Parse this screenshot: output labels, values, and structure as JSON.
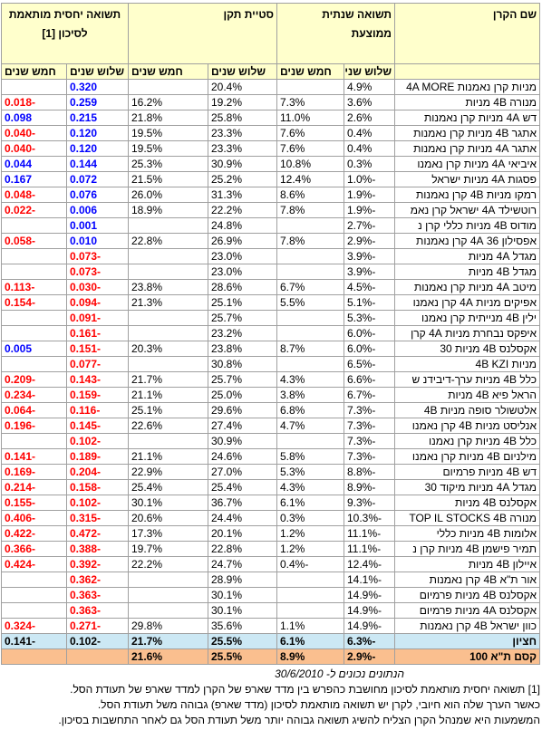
{
  "header": {
    "name": "שם הקרן",
    "groups": [
      {
        "label": "תשואה שנתית ממוצעת",
        "sub": [
          "שלוש שנים",
          "חמש שנים"
        ]
      },
      {
        "label": "סטיית תקן",
        "sub": [
          "שלוש שנים",
          "חמש שנים"
        ]
      },
      {
        "label": "תשואה יחסית מותאמת לסיכון [1]",
        "sub": [
          "שלוש שנים",
          "חמש שנים"
        ]
      }
    ]
  },
  "rows": [
    [
      "מניות קרן נאמנות 4A MORE",
      "4.9%",
      null,
      "20.4%",
      null,
      "0.320",
      null
    ],
    [
      "מנורה 4B מניות",
      "3.6%",
      "7.3%",
      "19.2%",
      "16.2%",
      "0.259",
      "-0.018"
    ],
    [
      "דש 4A מניות קרן נאמנות",
      "2.6%",
      "11.0%",
      "25.8%",
      "21.8%",
      "0.215",
      "0.098"
    ],
    [
      "אתגר 4B מניות קרן נאמנות",
      "0.4%",
      "7.6%",
      "23.3%",
      "19.5%",
      "0.120",
      "-0.040"
    ],
    [
      "אתגר 4A מניות קרן נאמנות",
      "0.4%",
      "7.6%",
      "23.3%",
      "19.5%",
      "0.120",
      "-0.040"
    ],
    [
      "איביאי 4A מניות קרן נאמנו",
      "0.3%",
      "10.8%",
      "30.9%",
      "25.3%",
      "0.144",
      "0.044"
    ],
    [
      "פסגות 4A מניות ישראל",
      "-1.0%",
      "12.4%",
      "25.2%",
      "21.5%",
      "0.072",
      "0.167"
    ],
    [
      "רמקו מניות 4B קרן נאמנות",
      "-1.9%",
      "8.6%",
      "31.3%",
      "26.0%",
      "0.076",
      "-0.048"
    ],
    [
      "רוטשילד 4A ישראל קרן נאמ",
      "-1.9%",
      "7.8%",
      "22.2%",
      "18.9%",
      "0.006",
      "-0.022"
    ],
    [
      "מודוס 4B מניות כללי קרן נ",
      "-2.7%",
      null,
      "24.8%",
      null,
      "0.001",
      null
    ],
    [
      "אפסילון 36 4A קרן נאמנות",
      "-2.9%",
      "7.8%",
      "26.9%",
      "22.8%",
      "0.010",
      "-0.058"
    ],
    [
      "מגדל 4A מניות",
      "-3.9%",
      null,
      "23.0%",
      null,
      "-0.073",
      null
    ],
    [
      "מגדל 4B מניות",
      "-3.9%",
      null,
      "23.0%",
      null,
      "-0.073",
      null
    ],
    [
      "מיטב 4A מניות קרן נאמנות",
      "-4.5%",
      "6.7%",
      "28.6%",
      "23.8%",
      "-0.030",
      "-0.113"
    ],
    [
      "אפיקים מניות 4A קרן נאמנו",
      "-5.1%",
      "5.5%",
      "25.1%",
      "21.3%",
      "-0.094",
      "-0.154"
    ],
    [
      "ילין 4B מנייתית קרן נאמנו",
      "-5.3%",
      null,
      "25.7%",
      null,
      "-0.091",
      null
    ],
    [
      "איפקס נבחרת מניות 4A קרן",
      "-6.0%",
      null,
      "23.2%",
      null,
      "-0.161",
      null
    ],
    [
      "אקסלנס 4B מניות 30",
      "-6.0%",
      "8.7%",
      "23.8%",
      "20.3%",
      "-0.151",
      "0.005"
    ],
    [
      "מניות 4B KZI",
      "-6.5%",
      null,
      "30.8%",
      null,
      "-0.077",
      null
    ],
    [
      "כלל 4B מניות ערך-דיבידנ ש",
      "-6.6%",
      "4.3%",
      "25.7%",
      "21.7%",
      "-0.143",
      "-0.209"
    ],
    [
      "הראל פיא 4B מניות",
      "-6.7%",
      "3.8%",
      "25.0%",
      "21.1%",
      "-0.159",
      "-0.234"
    ],
    [
      "אלטשולר סופה מניות 4B",
      "-7.3%",
      "6.8%",
      "29.6%",
      "25.1%",
      "-0.116",
      "-0.064"
    ],
    [
      "אנליסט מניות 4B קרן נאמנו",
      "-7.3%",
      "4.7%",
      "27.4%",
      "22.6%",
      "-0.145",
      "-0.196"
    ],
    [
      "כלל 4B מניות קרן נאמנו",
      "-7.3%",
      null,
      "30.9%",
      null,
      "-0.102",
      null
    ],
    [
      "מילניום 4B מניות קרן נאמנו",
      "-7.3%",
      "5.8%",
      "24.6%",
      "21.1%",
      "-0.189",
      "-0.141"
    ],
    [
      "דש 4B מניות פרמיום",
      "-8.8%",
      "5.3%",
      "27.0%",
      "22.9%",
      "-0.204",
      "-0.169"
    ],
    [
      "מגדל 4A מניות מיקוד 30",
      "-8.9%",
      "4.3%",
      "25.4%",
      "25.4%",
      "-0.158",
      "-0.214"
    ],
    [
      "אקסלנס 4B מניות",
      "-9.3%",
      "6.1%",
      "36.7%",
      "30.1%",
      "-0.102",
      "-0.155"
    ],
    [
      "מנורה TOP IL STOCKS 4B",
      "-10.3%",
      "0.3%",
      "24.4%",
      "20.6%",
      "-0.315",
      "-0.406"
    ],
    [
      "אלומות 4B מניות כללי",
      "-11.1%",
      "1.2%",
      "20.1%",
      "17.3%",
      "-0.472",
      "-0.422"
    ],
    [
      "תמיר פישמן 4B מניות קרן נ",
      "-11.1%",
      "1.2%",
      "22.8%",
      "19.7%",
      "-0.388",
      "-0.366"
    ],
    [
      "איילון 4B מניות",
      "-12.4%",
      "-0.4%",
      "24.7%",
      "22.2%",
      "-0.392",
      "-0.424"
    ],
    [
      "אור ת\"א 4B קרן נאמנות",
      "-14.1%",
      null,
      "28.9%",
      null,
      "-0.362",
      null
    ],
    [
      "אקסלנס 4B מניות פרמיום",
      "-14.9%",
      null,
      "30.1%",
      null,
      "-0.363",
      null
    ],
    [
      "אקסלנס 4A מניות פרמיום",
      "-14.9%",
      null,
      "30.1%",
      null,
      "-0.363",
      null
    ],
    [
      "כוון ישראל 4B קרן נאמנות",
      "-14.9%",
      "1.1%",
      "35.6%",
      "29.8%",
      "-0.271",
      "-0.324"
    ]
  ],
  "median": [
    "חציון",
    "-6.3%",
    "6.1%",
    "25.5%",
    "21.7%",
    "-0.102",
    "-0.141"
  ],
  "benchmark": [
    "קסם ת\"א 100",
    "-2.9%",
    "8.9%",
    "25.5%",
    "21.6%",
    null,
    null
  ],
  "date_note": "הנתונים נכונים ל- 30/6/2010",
  "footnotes": [
    "[1] תשואה יחסית מותאמת לסיכון מחושבת כהפרש בין מדד שארפ של הקרן למדד שארפ של תעודת הסל.",
    "כאשר הערך שלה הוא חיובי, לקרן יש תשואה מותאמת לסיכון (מדד שארפ) גבוהה משל תעודת הסל.",
    "המשמעות היא שמנהל הקרן הצליח להשיג תשואה גבוהה יותר משל תעודת הסל גם לאחר התחשבות בסיכון."
  ]
}
